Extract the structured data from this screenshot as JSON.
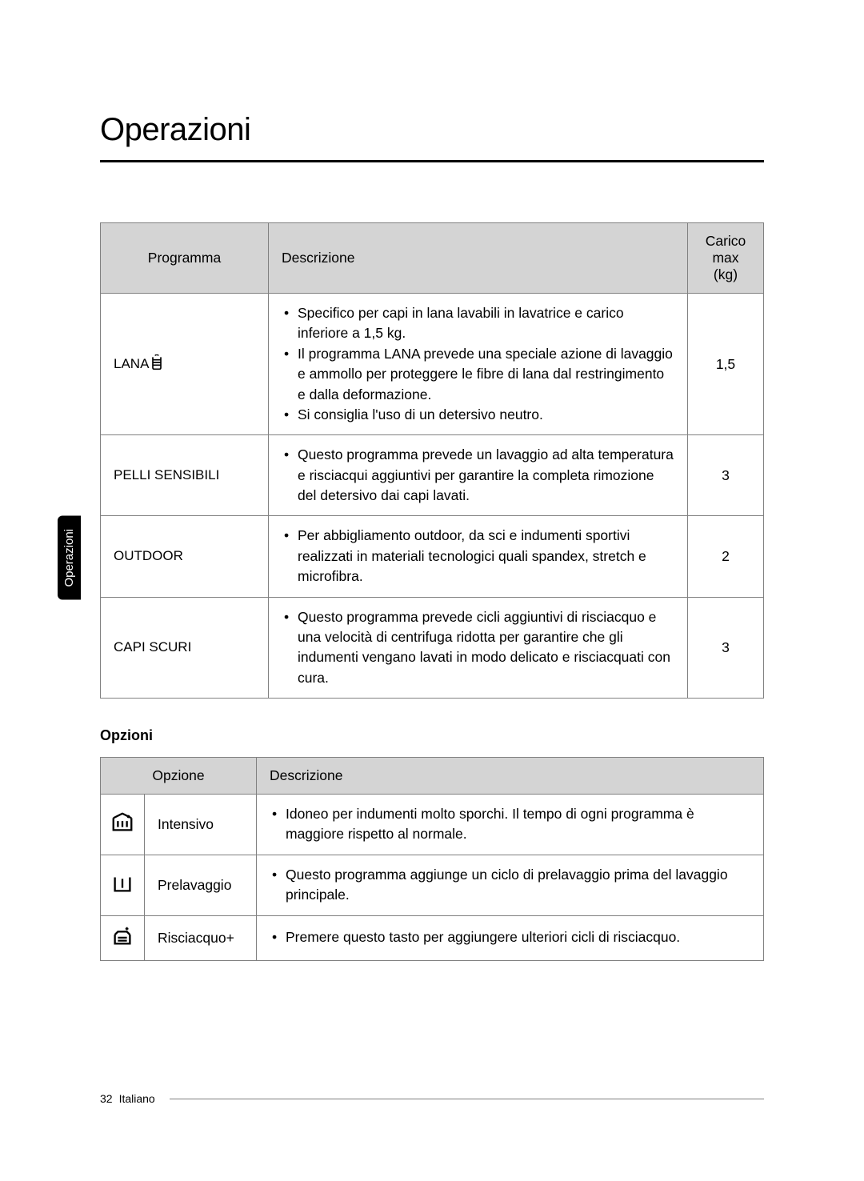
{
  "title": "Operazioni",
  "sideTab": "Operazioni",
  "programsTable": {
    "headers": {
      "program": "Programma",
      "description": "Descrizione",
      "maxLoad": "Carico max (kg)"
    },
    "rows": [
      {
        "program": "LANA",
        "hasWoolIcon": true,
        "descriptions": [
          "Specifico per capi in lana lavabili in lavatrice e carico inferiore a 1,5 kg.",
          "Il programma LANA prevede una speciale azione di lavaggio e ammollo per proteggere le fibre di lana dal restringimento e dalla deformazione.",
          "Si consiglia l'uso di un detersivo neutro."
        ],
        "maxLoad": "1,5"
      },
      {
        "program": "PELLI SENSIBILI",
        "hasWoolIcon": false,
        "descriptions": [
          "Questo programma prevede un lavaggio ad alta temperatura e risciacqui aggiuntivi per garantire la completa rimozione del detersivo dai capi lavati."
        ],
        "maxLoad": "3"
      },
      {
        "program": "OUTDOOR",
        "hasWoolIcon": false,
        "descriptions": [
          "Per abbigliamento outdoor, da sci e indumenti sportivi realizzati in materiali tecnologici quali spandex, stretch e microfibra."
        ],
        "maxLoad": "2"
      },
      {
        "program": "CAPI SCURI",
        "hasWoolIcon": false,
        "descriptions": [
          "Questo programma prevede cicli aggiuntivi di risciacquo e una velocità di centrifuga ridotta per garantire che gli indumenti vengano lavati in modo delicato e risciacquati con cura."
        ],
        "maxLoad": "3"
      }
    ]
  },
  "optionsSection": {
    "title": "Opzioni",
    "headers": {
      "option": "Opzione",
      "description": "Descrizione"
    },
    "rows": [
      {
        "icon": "intensive",
        "name": "Intensivo",
        "descriptions": [
          "Idoneo per indumenti molto sporchi. Il tempo di ogni programma è maggiore rispetto al normale."
        ]
      },
      {
        "icon": "prewash",
        "name": "Prelavaggio",
        "descriptions": [
          "Questo programma aggiunge un ciclo di prelavaggio prima del lavaggio principale."
        ]
      },
      {
        "icon": "rinse",
        "name": "Risciacquo+",
        "descriptions": [
          "Premere questo tasto per aggiungere ulteriori cicli di risciacquo."
        ]
      }
    ]
  },
  "footer": {
    "pageNumber": "32",
    "language": "Italiano"
  }
}
